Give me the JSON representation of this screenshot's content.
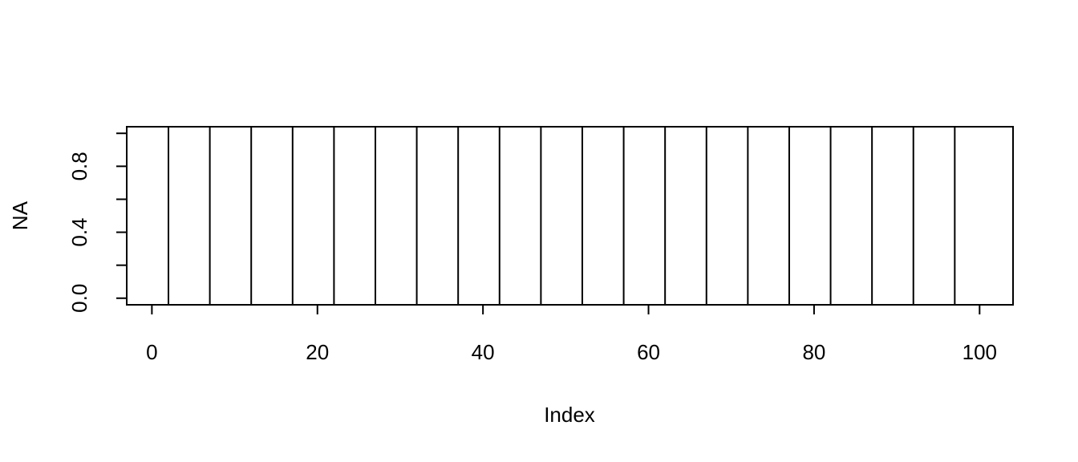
{
  "chart_data": {
    "type": "line",
    "title": "",
    "xlabel": "Index",
    "ylabel": "NA",
    "xlim": [
      -3.04,
      104.04
    ],
    "ylim": [
      -0.04,
      1.04
    ],
    "x_ticks": [
      0,
      20,
      40,
      60,
      80,
      100
    ],
    "x_tick_labels": [
      "0",
      "20",
      "40",
      "60",
      "80",
      "100"
    ],
    "y_ticks": [
      0.0,
      0.2,
      0.4,
      0.6,
      0.8,
      1.0
    ],
    "y_tick_labels": [
      "0.0",
      "0.4",
      "0.8"
    ],
    "y_labeled_ticks": [
      0.0,
      0.4,
      0.8
    ],
    "vertical_lines_x": [
      2,
      7,
      12,
      17,
      22,
      27,
      32,
      37,
      42,
      47,
      52,
      57,
      62,
      67,
      72,
      77,
      82,
      87,
      92,
      97
    ],
    "grid": false,
    "legend": "none"
  }
}
